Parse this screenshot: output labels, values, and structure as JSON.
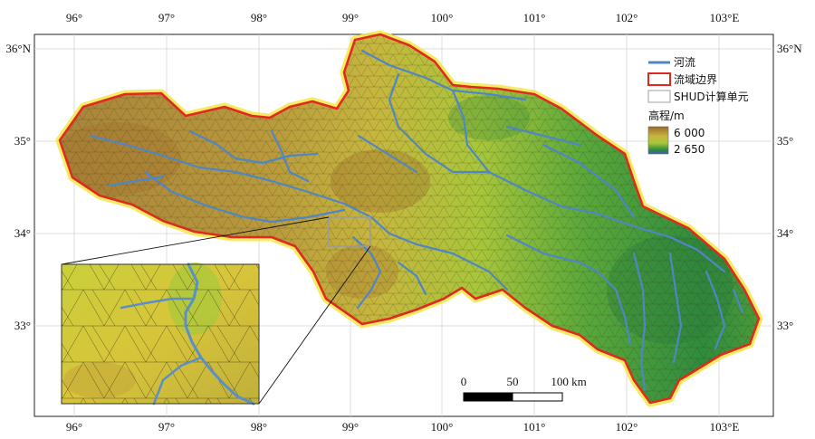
{
  "axes": {
    "top_lon": [
      "96°",
      "97°",
      "98°",
      "99°",
      "100°",
      "101°",
      "102°",
      "103°E"
    ],
    "bottom_lon": [
      "96°",
      "97°",
      "98°",
      "99°",
      "100°",
      "101°",
      "102°",
      "103°E"
    ],
    "left_lat": [
      "36°N",
      "35°",
      "34°",
      "33°"
    ],
    "right_lat": [
      "36°N",
      "35°",
      "34°",
      "33°"
    ]
  },
  "legend": {
    "river_label": "河流",
    "boundary_label": "流域边界",
    "mesh_label": "SHUD计算单元",
    "elevation_title": "高程/m",
    "elev_high": "6 000",
    "elev_low": "2 650"
  },
  "scalebar": {
    "labels": [
      "0",
      "50",
      "100 km"
    ]
  },
  "colors": {
    "river": "#4f86c6",
    "boundary": "#e02a1e",
    "boundary_halo": "#f3e84a",
    "elev_high": "#9b6a2c",
    "elev_mid": "#c8d43a",
    "elev_low": "#2c8a3c",
    "elev_lowest": "#3a5bb8",
    "mesh_line": "#5b5b3a"
  }
}
